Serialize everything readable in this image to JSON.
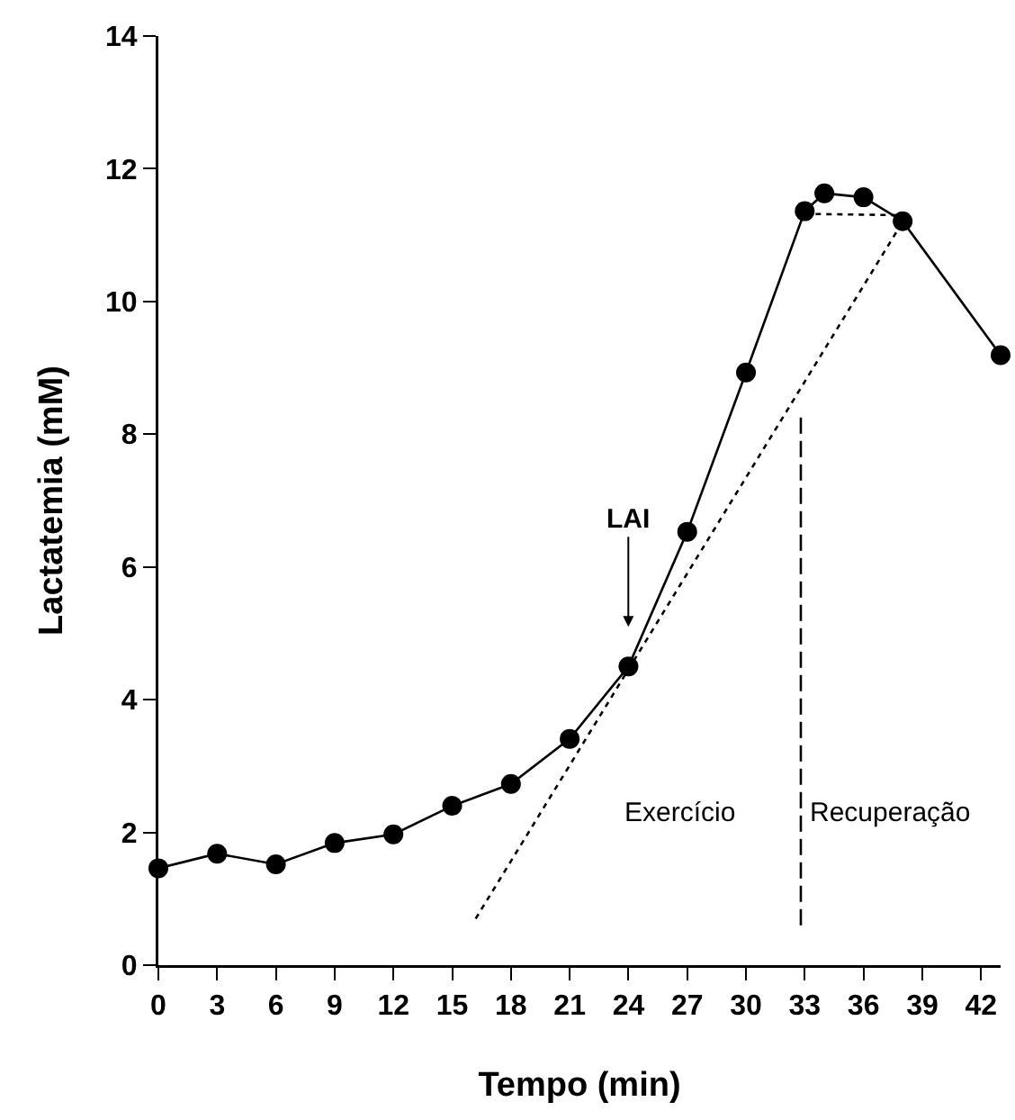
{
  "chart_data": {
    "type": "line",
    "xlabel": "Tempo (min)",
    "ylabel": "Lactatemia (mM)",
    "xlim": [
      0,
      43
    ],
    "xticks": [
      0,
      3,
      6,
      9,
      12,
      15,
      18,
      21,
      24,
      27,
      30,
      33,
      36,
      39,
      42
    ],
    "ylim": [
      0,
      14
    ],
    "yticks": [
      0,
      2,
      4,
      6,
      8,
      10,
      12,
      14
    ],
    "series": [
      {
        "color": "#000000",
        "marker": "circle",
        "line_style": "solid",
        "x": [
          0,
          3,
          6,
          9,
          12,
          15,
          18,
          21,
          24,
          27,
          30,
          33,
          34,
          36,
          38,
          43
        ],
        "values": [
          1.46,
          1.68,
          1.52,
          1.84,
          1.97,
          2.4,
          2.73,
          3.41,
          4.5,
          6.53,
          8.93,
          11.36,
          11.63,
          11.57,
          11.21,
          9.19
        ]
      },
      {
        "color": "#000000",
        "marker": "none",
        "line_style": "dotted",
        "x": [
          16.2,
          38
        ],
        "values": [
          0.7,
          11.2
        ]
      },
      {
        "color": "#000000",
        "marker": "none",
        "line_style": "dotted",
        "x": [
          33,
          38
        ],
        "values": [
          11.32,
          11.3
        ]
      },
      {
        "color": "#000000",
        "marker": "none",
        "line_style": "dashed",
        "x": [
          32.8,
          32.8
        ],
        "values": [
          0.6,
          8.3
        ]
      }
    ],
    "annotations": [
      "LAI",
      "Exercício",
      "Recuperação"
    ]
  }
}
